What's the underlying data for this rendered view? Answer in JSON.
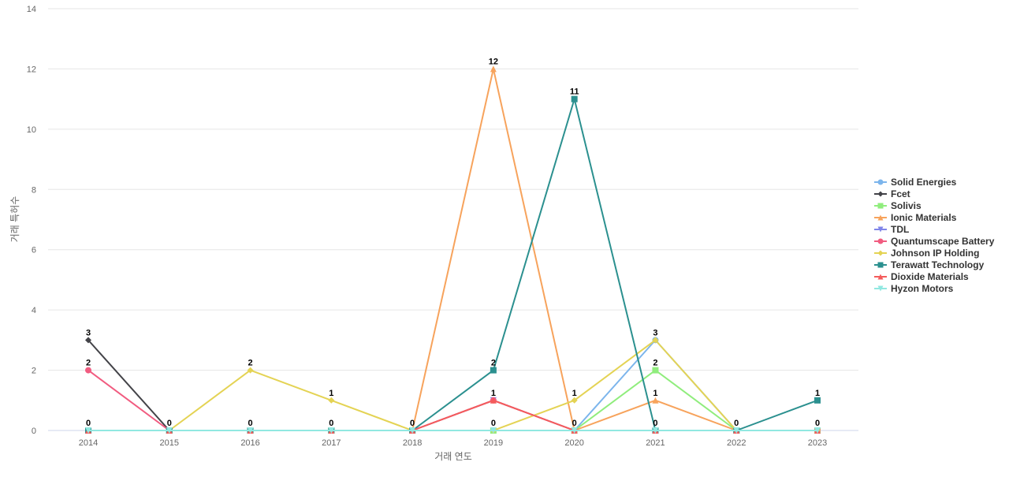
{
  "chart_data": {
    "type": "line",
    "title": "",
    "xlabel": "거래 연도",
    "ylabel": "거래 특허수",
    "x": [
      "2014",
      "2015",
      "2016",
      "2017",
      "2018",
      "2019",
      "2020",
      "2021",
      "2022",
      "2023"
    ],
    "ylim": [
      0,
      14
    ],
    "yticks": [
      0,
      2,
      4,
      6,
      8,
      10,
      12,
      14
    ],
    "grid": true,
    "legend_position": "right",
    "series": [
      {
        "name": "Solid Energies",
        "color": "#7cb5ec",
        "marker": "circle",
        "values": [
          0,
          0,
          0,
          0,
          0,
          0,
          0,
          3,
          0,
          0
        ],
        "labels_shown": false
      },
      {
        "name": "Fcet",
        "color": "#434348",
        "marker": "diamond",
        "values": [
          3,
          0,
          0,
          0,
          0,
          0,
          0,
          0,
          0,
          0
        ],
        "labels_shown": true
      },
      {
        "name": "Solivis",
        "color": "#90ed7d",
        "marker": "square",
        "values": [
          0,
          0,
          0,
          0,
          0,
          0,
          0,
          2,
          0,
          0
        ],
        "labels_shown": true
      },
      {
        "name": "Ionic Materials",
        "color": "#f7a35c",
        "marker": "triangle",
        "values": [
          0,
          0,
          0,
          0,
          0,
          12,
          0,
          1,
          0,
          0
        ],
        "labels_shown": true
      },
      {
        "name": "TDL",
        "color": "#8085e9",
        "marker": "triangle-down",
        "values": [
          0,
          0,
          0,
          0,
          0,
          1,
          0,
          0,
          0,
          0
        ],
        "labels_shown": false
      },
      {
        "name": "Quantumscape Battery",
        "color": "#f15c80",
        "marker": "circle",
        "values": [
          2,
          0,
          0,
          0,
          0,
          1,
          0,
          0,
          0,
          0
        ],
        "labels_shown": true
      },
      {
        "name": "Johnson IP Holding",
        "color": "#e4d354",
        "marker": "diamond",
        "values": [
          0,
          0,
          2,
          1,
          0,
          0,
          1,
          3,
          0,
          0
        ],
        "labels_shown": true
      },
      {
        "name": "Terawatt Technology",
        "color": "#2b908f",
        "marker": "square",
        "values": [
          0,
          0,
          0,
          0,
          0,
          2,
          11,
          0,
          0,
          1
        ],
        "labels_shown": true
      },
      {
        "name": "Dioxide Materials",
        "color": "#f45b5b",
        "marker": "triangle",
        "values": [
          0,
          0,
          0,
          0,
          0,
          1,
          0,
          0,
          0,
          0
        ],
        "labels_shown": false
      },
      {
        "name": "Hyzon Motors",
        "color": "#91e8e1",
        "marker": "triangle-down",
        "values": [
          0,
          0,
          0,
          0,
          0,
          0,
          0,
          0,
          0,
          0
        ],
        "labels_shown": false
      }
    ],
    "data_labels": [
      {
        "x": "2014",
        "text": "3"
      },
      {
        "x": "2014",
        "text": "2"
      },
      {
        "x": "2014",
        "text": "0"
      },
      {
        "x": "2015",
        "text": "0"
      },
      {
        "x": "2016",
        "text": "2"
      },
      {
        "x": "2016",
        "text": "0"
      },
      {
        "x": "2017",
        "text": "1"
      },
      {
        "x": "2017",
        "text": "0"
      },
      {
        "x": "2018",
        "text": "0"
      },
      {
        "x": "2019",
        "text": "12"
      },
      {
        "x": "2019",
        "text": "2"
      },
      {
        "x": "2019",
        "text": "1"
      },
      {
        "x": "2019",
        "text": "0"
      },
      {
        "x": "2020",
        "text": "11"
      },
      {
        "x": "2020",
        "text": "1"
      },
      {
        "x": "2020",
        "text": "0"
      },
      {
        "x": "2021",
        "text": "3"
      },
      {
        "x": "2021",
        "text": "2"
      },
      {
        "x": "2021",
        "text": "1"
      },
      {
        "x": "2021",
        "text": "0"
      },
      {
        "x": "2022",
        "text": "0"
      },
      {
        "x": "2023",
        "text": "1"
      },
      {
        "x": "2023",
        "text": "0"
      }
    ]
  }
}
